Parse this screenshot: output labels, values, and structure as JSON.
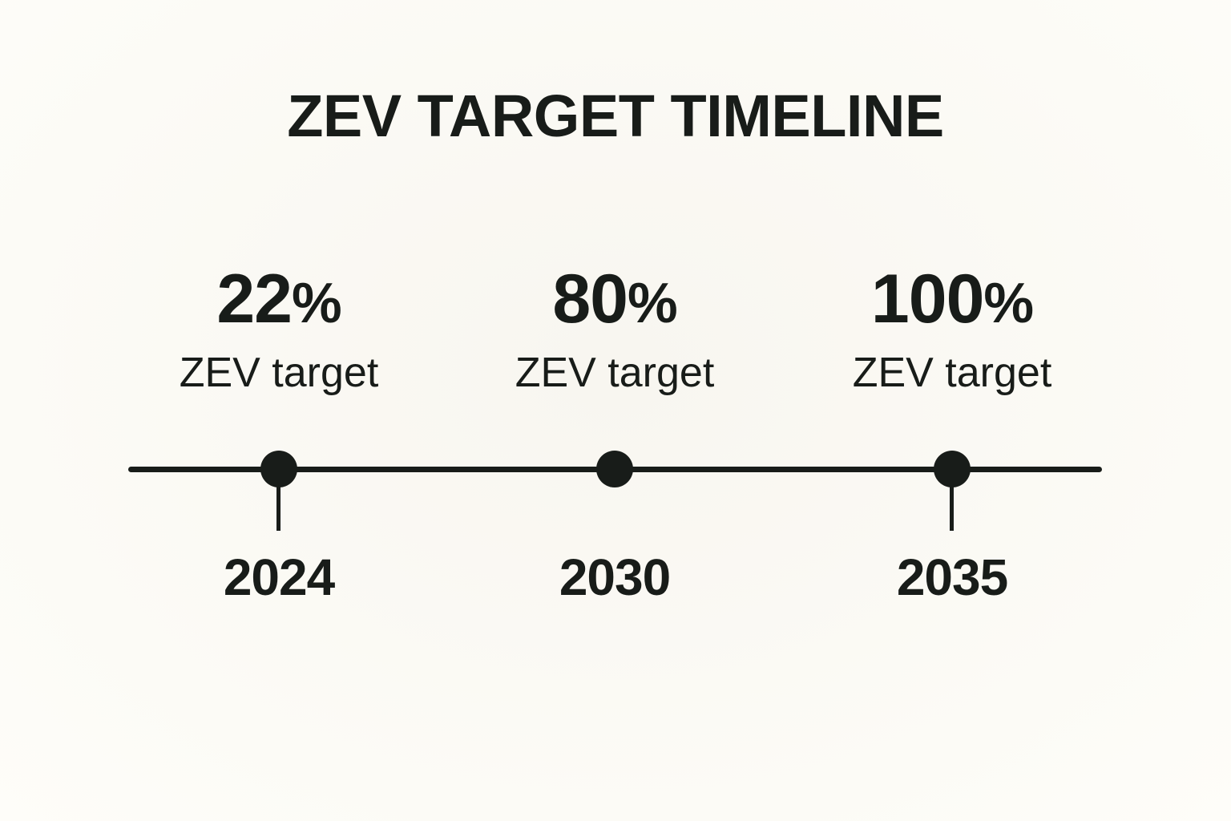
{
  "title": "ZEV TARGET TIMELINE",
  "colors": {
    "background": "#fcfbf6",
    "ink": "#181c19"
  },
  "timeline": {
    "milestones": [
      {
        "value": "22",
        "suffix": "%",
        "label": "ZEV target",
        "year": "2024"
      },
      {
        "value": "80",
        "suffix": "%",
        "label": "ZEV target",
        "year": "2030"
      },
      {
        "value": "100",
        "suffix": "%",
        "label": "ZEV target",
        "year": "2035"
      }
    ]
  }
}
